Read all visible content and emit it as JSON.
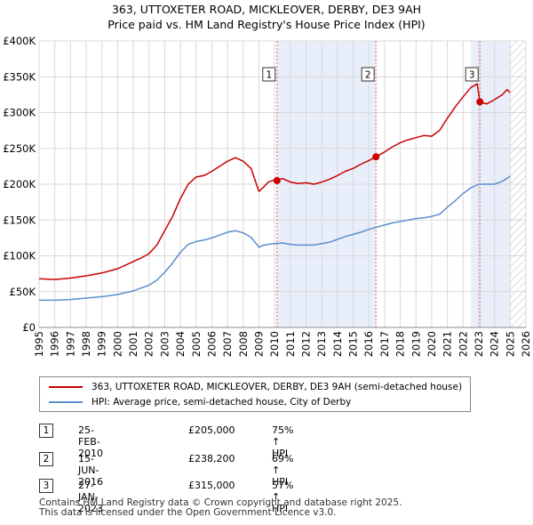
{
  "title_line1": "363, UTTOXETER ROAD, MICKLEOVER, DERBY, DE3 9AH",
  "title_line2": "Price paid vs. HM Land Registry's House Price Index (HPI)",
  "colors": {
    "red": "#cc0000",
    "blue": "#5b8fcc",
    "shade": "#e8eefa",
    "grid": "#d9d9d9",
    "marker_line": "#e06060"
  },
  "chart_data": {
    "type": "line",
    "xlim": [
      1995,
      2026
    ],
    "ylim": [
      0,
      400000
    ],
    "x_ticks": [
      "1995",
      "1996",
      "1997",
      "1998",
      "1999",
      "2000",
      "2001",
      "2002",
      "2003",
      "2004",
      "2005",
      "2006",
      "2007",
      "2008",
      "2009",
      "2010",
      "2011",
      "2012",
      "2013",
      "2014",
      "2015",
      "2016",
      "2017",
      "2018",
      "2019",
      "2020",
      "2021",
      "2022",
      "2023",
      "2024",
      "2025",
      "2026"
    ],
    "y_ticks": [
      {
        "value": 0,
        "label": "£0"
      },
      {
        "value": 50000,
        "label": "£50K"
      },
      {
        "value": 100000,
        "label": "£100K"
      },
      {
        "value": 150000,
        "label": "£150K"
      },
      {
        "value": 200000,
        "label": "£200K"
      },
      {
        "value": 250000,
        "label": "£250K"
      },
      {
        "value": 300000,
        "label": "£300K"
      },
      {
        "value": 350000,
        "label": "£350K"
      },
      {
        "value": 400000,
        "label": "£400K"
      }
    ],
    "shaded_ranges": [
      [
        2010.15,
        2016.45
      ],
      [
        2022.5,
        2025.0
      ]
    ],
    "hatched_from": 2025.0,
    "series": [
      {
        "name": "363, UTTOXETER ROAD, MICKLEOVER, DERBY, DE3 9AH (semi-detached house)",
        "color": "#cc0000",
        "x": [
          1995.0,
          1996.0,
          1997.0,
          1998.0,
          1999.0,
          2000.0,
          2001.0,
          2001.5,
          2002.0,
          2002.5,
          2003.0,
          2003.5,
          2004.0,
          2004.5,
          2005.0,
          2005.5,
          2006.0,
          2006.5,
          2007.0,
          2007.5,
          2008.0,
          2008.5,
          2009.0,
          2009.3,
          2009.6,
          2010.0,
          2010.15,
          2010.5,
          2011.0,
          2011.5,
          2012.0,
          2012.5,
          2013.0,
          2013.5,
          2014.0,
          2014.5,
          2015.0,
          2015.5,
          2016.0,
          2016.45,
          2017.0,
          2017.5,
          2018.0,
          2018.5,
          2019.0,
          2019.5,
          2020.0,
          2020.5,
          2021.0,
          2021.5,
          2022.0,
          2022.5,
          2022.9,
          2023.07,
          2023.5,
          2024.0,
          2024.5,
          2024.8,
          2025.0
        ],
        "values": [
          68000,
          67000,
          69000,
          72000,
          76000,
          82000,
          92000,
          97000,
          103000,
          115000,
          135000,
          155000,
          180000,
          200000,
          210000,
          212000,
          218000,
          225000,
          232000,
          237000,
          232000,
          222000,
          190000,
          196000,
          203000,
          206000,
          205000,
          208000,
          203000,
          201000,
          202000,
          200000,
          203000,
          207000,
          212000,
          218000,
          222000,
          228000,
          233000,
          238200,
          245000,
          252000,
          258000,
          262000,
          265000,
          268000,
          267000,
          275000,
          292000,
          308000,
          322000,
          335000,
          340000,
          315000,
          312000,
          318000,
          325000,
          332000,
          328000
        ]
      },
      {
        "name": "HPI: Average price, semi-detached house, City of Derby",
        "color": "#5b8fcc",
        "x": [
          1995.0,
          1996.0,
          1997.0,
          1998.0,
          1999.0,
          2000.0,
          2001.0,
          2001.5,
          2002.0,
          2002.5,
          2003.0,
          2003.5,
          2004.0,
          2004.5,
          2005.0,
          2005.5,
          2006.0,
          2006.5,
          2007.0,
          2007.5,
          2008.0,
          2008.5,
          2009.0,
          2009.3,
          2009.6,
          2010.0,
          2010.5,
          2011.0,
          2011.5,
          2012.0,
          2012.5,
          2013.0,
          2013.5,
          2014.0,
          2014.5,
          2015.0,
          2015.5,
          2016.0,
          2016.5,
          2017.0,
          2017.5,
          2018.0,
          2018.5,
          2019.0,
          2019.5,
          2020.0,
          2020.5,
          2021.0,
          2021.5,
          2022.0,
          2022.5,
          2023.0,
          2023.5,
          2024.0,
          2024.5,
          2025.0
        ],
        "values": [
          38000,
          38000,
          39000,
          41000,
          43000,
          46000,
          51000,
          55000,
          59000,
          66000,
          77000,
          90000,
          105000,
          116000,
          120000,
          122000,
          125000,
          129000,
          133000,
          135000,
          132000,
          126000,
          112000,
          115000,
          116000,
          117000,
          118000,
          116000,
          115000,
          115000,
          115000,
          117000,
          119000,
          123000,
          127000,
          130000,
          133000,
          137000,
          140000,
          143000,
          146000,
          148000,
          150000,
          152000,
          153000,
          155000,
          158000,
          168000,
          177000,
          187000,
          195000,
          200000,
          200000,
          200000,
          204000,
          211000
        ]
      }
    ],
    "sale_markers": [
      {
        "num": "1",
        "x": 2010.15,
        "value": 205000
      },
      {
        "num": "2",
        "x": 2016.45,
        "value": 238200
      },
      {
        "num": "3",
        "x": 2023.07,
        "value": 315000
      }
    ]
  },
  "legend": {
    "red_label": "363, UTTOXETER ROAD, MICKLEOVER, DERBY, DE3 9AH (semi-detached house)",
    "blue_label": "HPI: Average price, semi-detached house, City of Derby"
  },
  "transactions": [
    {
      "num": "1",
      "date": "25-FEB-2010",
      "price": "£205,000",
      "hpi": "75% ↑ HPI"
    },
    {
      "num": "2",
      "date": "15-JUN-2016",
      "price": "£238,200",
      "hpi": "69% ↑ HPI"
    },
    {
      "num": "3",
      "date": "27-JAN-2023",
      "price": "£315,000",
      "hpi": "57% ↑ HPI"
    }
  ],
  "footer_line1": "Contains HM Land Registry data © Crown copyright and database right 2025.",
  "footer_line2": "This data is licensed under the Open Government Licence v3.0."
}
